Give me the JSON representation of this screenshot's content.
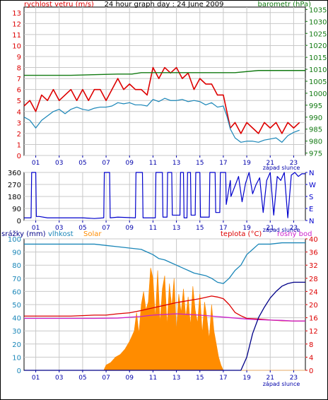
{
  "chart_data": [
    {
      "panel": "wind-pressure",
      "type": "line",
      "title": "24 hour graph day : 24 June 2009",
      "left_axis_label": "rychlost vetru (m/s)",
      "right_axis_label": "barometr (hPa)",
      "left_ticks": [
        "0",
        "1",
        "2",
        "3",
        "4",
        "5",
        "6",
        "7",
        "8",
        "9",
        "10",
        "11",
        "12",
        "13"
      ],
      "right_ticks": [
        "975",
        "980",
        "985",
        "990",
        "995",
        "1000",
        "1005",
        "1010",
        "1015",
        "1020",
        "1025",
        "1030",
        "1035"
      ],
      "x_ticks": [
        "01",
        "03",
        "05",
        "07",
        "09",
        "11",
        "13",
        "15",
        "17",
        "19",
        "21",
        "23"
      ],
      "x_note": "západ slunce",
      "ylim_left": [
        0,
        13.5
      ],
      "ylim_right": [
        974,
        1036
      ],
      "grid": true,
      "series": [
        {
          "key": "gust",
          "color": "#dd0000",
          "x": [
            0,
            0.5,
            1,
            1.5,
            2,
            2.5,
            3,
            3.5,
            4,
            4.5,
            5,
            5.5,
            6,
            6.5,
            7,
            7.5,
            8,
            8.5,
            9,
            9.5,
            10,
            10.5,
            11,
            11.5,
            12,
            12.5,
            13,
            13.5,
            14,
            14.5,
            15,
            15.5,
            16,
            16.5,
            17,
            17.3,
            17.6,
            18,
            18.5,
            19,
            19.5,
            20,
            20.5,
            21,
            21.5,
            22,
            22.5,
            23,
            23.5
          ],
          "y": [
            4.5,
            5,
            4,
            5.5,
            5,
            6,
            5,
            5.5,
            6,
            5,
            6,
            5,
            6,
            6,
            5,
            6,
            7,
            6,
            6.5,
            6,
            6,
            5.5,
            8,
            7,
            8,
            7.5,
            8,
            7,
            7.5,
            6,
            7,
            6.5,
            6.5,
            5.5,
            5.5,
            4,
            2.5,
            3,
            2,
            3,
            2.5,
            2,
            3,
            2.5,
            3,
            2,
            3,
            2.5,
            3
          ]
        },
        {
          "key": "wind",
          "color": "#1a86b8",
          "x": [
            0,
            0.5,
            1,
            1.5,
            2,
            2.5,
            3,
            3.5,
            4,
            4.5,
            5,
            5.5,
            6,
            6.5,
            7,
            7.5,
            8,
            8.5,
            9,
            9.5,
            10,
            10.5,
            11,
            11.5,
            12,
            12.5,
            13,
            13.5,
            14,
            14.5,
            15,
            15.5,
            16,
            16.5,
            17,
            17.3,
            17.6,
            18,
            18.5,
            19,
            19.5,
            20,
            20.5,
            21,
            21.5,
            22,
            22.5,
            23,
            23.5
          ],
          "y": [
            3.5,
            3.2,
            2.5,
            3.2,
            3.6,
            4.0,
            4.2,
            3.8,
            4.2,
            4.4,
            4.2,
            4.1,
            4.3,
            4.4,
            4.4,
            4.5,
            4.8,
            4.7,
            4.8,
            4.6,
            4.6,
            4.5,
            5.1,
            4.9,
            5.2,
            5.0,
            5.0,
            5.1,
            4.9,
            5.0,
            4.9,
            4.6,
            4.8,
            4.4,
            4.5,
            3.6,
            2.4,
            1.6,
            1.2,
            1.3,
            1.3,
            1.2,
            1.4,
            1.5,
            1.6,
            1.2,
            1.8,
            2.1,
            2.3
          ]
        },
        {
          "key": "pressure",
          "color": "#127a12",
          "axis": "right",
          "x": [
            0,
            4,
            8,
            9.2,
            10,
            12,
            14,
            16,
            18,
            20,
            22,
            24
          ],
          "y": [
            1007.5,
            1007.5,
            1008,
            1008,
            1008.6,
            1008.6,
            1008.6,
            1008.6,
            1008.6,
            1009.5,
            1009.5,
            1009.5
          ]
        }
      ]
    },
    {
      "panel": "wind-direction",
      "type": "line",
      "left_ticks": [
        "0",
        "90",
        "180",
        "270",
        "360"
      ],
      "right_ticks": [
        "N",
        "E",
        "S",
        "W",
        "N"
      ],
      "x_ticks": [
        "01",
        "03",
        "05",
        "07",
        "09",
        "11",
        "13",
        "15",
        "17",
        "19",
        "21",
        "23"
      ],
      "x_note": "západ slunce",
      "ylim": [
        0,
        360
      ],
      "grid": true,
      "series": [
        {
          "key": "direction",
          "color": "#0000cc",
          "x": [
            0,
            0.6,
            0.65,
            1,
            1.05,
            1.3,
            2,
            4,
            5,
            6,
            6.8,
            6.85,
            7.3,
            7.35,
            8,
            9.5,
            9.55,
            10.1,
            10.15,
            11,
            11.2,
            11.25,
            11.8,
            11.85,
            12.2,
            12.25,
            12.6,
            12.65,
            13.3,
            13.35,
            13.6,
            13.65,
            13.9,
            13.95,
            14.2,
            14.25,
            14.6,
            14.65,
            15,
            15.05,
            15.8,
            15.85,
            16.3,
            16.35,
            16.7,
            16.75,
            17.2,
            17.25,
            17.6,
            17.65,
            18.0,
            18.3,
            18.6,
            18.9,
            19.2,
            19.5,
            19.8,
            20.1,
            20.4,
            20.7,
            21,
            21.3,
            21.6,
            21.9,
            22.2,
            22.5,
            22.8,
            23.1,
            23.4,
            23.7,
            24
          ],
          "y": [
            20,
            20,
            360,
            360,
            30,
            30,
            20,
            20,
            20,
            15,
            20,
            360,
            360,
            20,
            25,
            20,
            360,
            360,
            20,
            20,
            20,
            360,
            360,
            25,
            25,
            360,
            360,
            40,
            40,
            360,
            360,
            20,
            20,
            360,
            360,
            40,
            40,
            360,
            360,
            25,
            25,
            360,
            360,
            60,
            60,
            360,
            360,
            120,
            300,
            180,
            260,
            330,
            140,
            280,
            360,
            200,
            270,
            320,
            60,
            300,
            360,
            40,
            330,
            300,
            360,
            20,
            340,
            360,
            330,
            350,
            350
          ]
        }
      ]
    },
    {
      "panel": "weather",
      "type": "line",
      "labels": [
        "srážky (mm)",
        "vlhkost",
        "Solar",
        "teplota (°C)",
        "rosný bod"
      ],
      "left_ticks": [
        "0",
        "10",
        "20",
        "30",
        "40",
        "50",
        "60",
        "70",
        "80",
        "90",
        "100"
      ],
      "right_ticks": [
        "0",
        "4",
        "8",
        "12",
        "16",
        "20",
        "24",
        "28",
        "32",
        "36",
        "40"
      ],
      "x_ticks": [
        "01",
        "03",
        "05",
        "07",
        "09",
        "11",
        "13",
        "15",
        "17",
        "19",
        "21",
        "23"
      ],
      "x_note": "západ slunce",
      "ylim_left": [
        0,
        100
      ],
      "ylim_right": [
        0,
        40
      ],
      "grid": true,
      "series": [
        {
          "key": "humidity",
          "color": "#1a86b8",
          "x": [
            0,
            1,
            2,
            3,
            4,
            5,
            6,
            7,
            8,
            9,
            10,
            10.5,
            11,
            11.5,
            12,
            12.5,
            13,
            13.5,
            14,
            14.5,
            15,
            15.5,
            16,
            16.5,
            17,
            17.5,
            18,
            18.5,
            19,
            19.5,
            20,
            21,
            22,
            23,
            24
          ],
          "y": [
            96,
            96,
            96,
            96,
            96,
            96,
            96,
            95,
            94,
            93,
            92,
            90,
            88,
            85,
            84,
            82,
            80,
            78,
            76,
            74,
            73,
            72,
            70,
            67,
            66,
            70,
            76,
            80,
            88,
            92,
            96,
            96,
            97,
            97,
            97
          ]
        },
        {
          "key": "temperature",
          "color": "#dd0000",
          "axis": "right",
          "x": [
            0,
            2,
            4,
            6,
            7,
            8,
            9,
            10,
            11,
            12,
            13,
            14,
            15,
            15.5,
            16,
            16.5,
            17,
            17.5,
            18,
            18.5,
            19,
            20,
            21,
            22,
            23,
            24
          ],
          "y": [
            16.5,
            16.5,
            16.5,
            16.8,
            16.8,
            17.2,
            17.5,
            18.2,
            19.0,
            19.8,
            20.6,
            21.2,
            21.8,
            22.2,
            22.6,
            22.3,
            21.8,
            20.0,
            17.6,
            16.6,
            15.8,
            15.6,
            15.3,
            15.1,
            15.0,
            15.0
          ]
        },
        {
          "key": "dewpoint",
          "color": "#cc22cc",
          "axis": "right",
          "x": [
            0,
            2,
            4,
            6,
            8,
            10,
            11,
            12,
            13,
            14,
            15,
            16,
            17,
            18,
            19,
            20,
            21,
            22,
            23,
            24
          ],
          "y": [
            15.8,
            15.8,
            15.8,
            15.8,
            15.9,
            16.4,
            16.8,
            17.0,
            17.2,
            17.0,
            16.8,
            16.5,
            16.2,
            15.9,
            15.6,
            15.4,
            15.3,
            15.2,
            15.0,
            15.0
          ]
        },
        {
          "key": "rain",
          "color": "#000088",
          "x": [
            0,
            18.5,
            19,
            19.5,
            20,
            20.5,
            21,
            21.5,
            22,
            22.5,
            23,
            24
          ],
          "y": [
            0,
            0,
            10,
            28,
            40,
            48,
            55,
            60,
            64,
            66,
            67,
            67
          ]
        },
        {
          "key": "solar",
          "color": "#ff8c00",
          "type": "area",
          "x": [
            0,
            6.8,
            7,
            7.4,
            7.8,
            8.2,
            8.6,
            9,
            9.4,
            9.6,
            9.8,
            10,
            10.2,
            10.4,
            10.6,
            10.8,
            11,
            11.2,
            11.4,
            11.6,
            11.8,
            12,
            12.2,
            12.4,
            12.6,
            12.8,
            13,
            13.2,
            13.4,
            13.6,
            13.8,
            14,
            14.2,
            14.4,
            14.6,
            14.8,
            15,
            15.2,
            15.4,
            15.6,
            15.8,
            16,
            16.2,
            16.4,
            16.6,
            16.8,
            17,
            17.2,
            24
          ],
          "y": [
            0,
            0,
            4,
            6,
            10,
            12,
            16,
            22,
            30,
            44,
            28,
            50,
            60,
            46,
            52,
            78,
            70,
            40,
            76,
            36,
            62,
            72,
            34,
            66,
            48,
            70,
            30,
            58,
            44,
            62,
            40,
            56,
            34,
            64,
            46,
            36,
            58,
            28,
            52,
            40,
            24,
            50,
            30,
            20,
            10,
            4,
            0,
            0,
            0
          ]
        }
      ]
    }
  ]
}
